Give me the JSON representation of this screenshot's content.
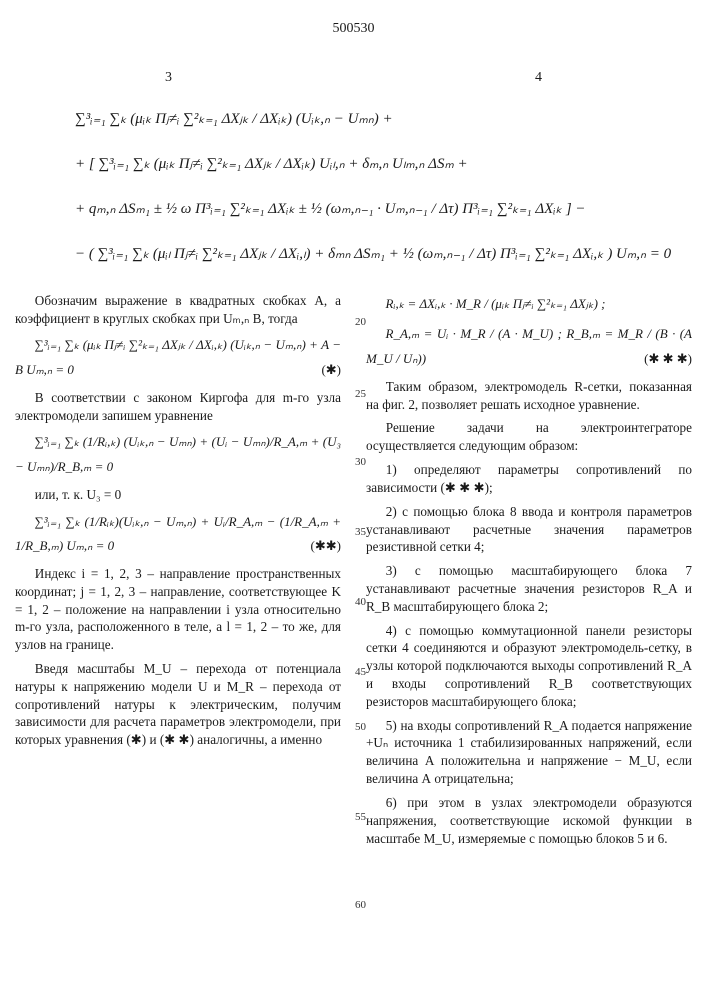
{
  "doc_number": "500530",
  "col_left_num": "3",
  "col_right_num": "4",
  "line_numbers": {
    "l20": "20",
    "l25": "25",
    "l30": "30",
    "l35": "35",
    "l40": "40",
    "l45": "45",
    "l50": "50",
    "l55": "55",
    "l60": "60"
  },
  "equations": {
    "eq1": "∑³ᵢ₌₁ ∑ₖ (μᵢₖ Πⱼ≠ᵢ ∑²ₖ₌₁ ΔXⱼₖ / ΔXᵢₖ) (Uᵢₖ,ₙ − Uₘₙ) +",
    "eq2": "+ [ ∑³ᵢ₌₁ ∑ₖ (μᵢₖ Πⱼ≠ᵢ ∑²ₖ₌₁ ΔXⱼₖ / ΔXᵢₖ) Uᵢₗ,ₙ + δₘ,ₙ Uₗₘ,ₙ ΔSₘ +",
    "eq3": "+ qₘ,ₙ ΔSₘ₁ ± ½ ω Π³ᵢ₌₁ ∑²ₖ₌₁ ΔXᵢₖ ± ½ (ωₘ,ₙ₋₁ · Uₘ,ₙ₋₁ / Δτ) Π³ᵢ₌₁ ∑²ₖ₌₁ ΔXᵢₖ ] −",
    "eq4": "− ( ∑³ᵢ₌₁ ∑ₖ (μᵢₗ Πⱼ≠ᵢ ∑²ₖ₌₁ ΔXⱼₖ / ΔXᵢ,ₗ) + δₘₙ ΔSₘ₁ + ½ (ωₘ,ₙ₋₁ / Δτ) Π³ᵢ₌₁ ∑²ₖ₌₁ ΔXᵢ,ₖ ) Uₘ,ₙ = 0"
  },
  "para1": "Обозначим выражение в квадратных скобках А, а коэффициент в круглых скобках при Uₘ,ₙ В, тогда",
  "eq5": "∑³ᵢ₌₁ ∑ₖ (μᵢₖ Πⱼ≠ᵢ ∑²ₖ₌₁ ΔXⱼₖ / ΔXᵢ,ₖ) (Uᵢₖ,ₙ − Uₘ,ₙ) + A − B Uₘ,ₙ = 0",
  "eq5_label": "(✱)",
  "para2": "В соответствии с законом Киргофа для m-го узла электромодели запишем уравнение",
  "eq6": "∑³ᵢ₌₁ ∑ₖ (1/Rᵢ,ₖ) (Uᵢₖ,ₙ − Uₘₙ) + (Uᵢ − Uₘₙ)/R_A,ₘ + (U₃ − Uₘₙ)/R_B,ₘ = 0",
  "para3": "или, т. к.   U₃ = 0",
  "eq7": "∑³ᵢ₌₁ ∑ₖ (1/Rᵢₖ)(Uᵢₖ,ₙ − Uₘ,ₙ) + Uᵢ/R_A,ₘ − (1/R_A,ₘ + 1/R_B,ₘ) Uₘ,ₙ = 0",
  "eq7_label": "(✱✱)",
  "para4": "Индекс  i = 1, 2, 3 – направление пространственных координат;   j = 1, 2, 3 – направление, соответствующее K = 1, 2 – положение на направлении i узла относительно m-го узла, расположенного в теле, а l = 1, 2 – то же, для узлов на границе.",
  "para5": "Введя масштабы M_U – перехода от потенциала натуры к напряжению модели U и M_R – перехода от сопротивлений натуры к электрическим, получим зависимости для расчета параметров электромодели, при которых уравнения (✱) и (✱ ✱) аналогичны, а именно",
  "eq8": "Rᵢ,ₖ = ΔXᵢ,ₖ · M_R / (μᵢₖ Πⱼ≠ᵢ ∑²ₖ₌₁ ΔXⱼₖ) ;",
  "eq9": "R_A,ₘ = Uᵢ · M_R / (A · M_U) ;   R_B,ₘ = M_R / (B · (A M_U / Uₙ))",
  "eq9_label": "(✱ ✱ ✱)",
  "para6": "Таким образом, электромодель R-сетки, показанная на фиг. 2, позволяет решать исходное уравнение.",
  "para7": "Решение задачи на электроинтеграторе осуществляется следующим образом:",
  "item1": "1) определяют параметры сопротивлений по зависимости (✱ ✱ ✱);",
  "item2": "2) с помощью блока 8 ввода и контроля параметров устанавливают расчетные значения параметров резистивной сетки 4;",
  "item3": "3) с помощью масштабирующего блока 7 устанавливают расчетные значения резисторов R_A и R_B масштабирующего блока 2;",
  "item4": "4) с помощью коммутационной панели резисторы сетки 4 соединяются и образуют электромодель-сетку, в узлы которой подключаются выходы сопротивлений R_A и входы сопротивлений R_B соответствующих резисторов масштабирующего блока;",
  "item5": "5) на входы сопротивлений R_A подается напряжение +Uₙ источника 1 стабилизированных напряжений, если величина А положительна и напряжение − M_U, если величина А отрицательна;",
  "item6": "6) при этом в узлах электромодели образуются напряжения, соответствующие искомой функции в масштабе M_U, измеряемые с помощью блоков 5 и 6."
}
